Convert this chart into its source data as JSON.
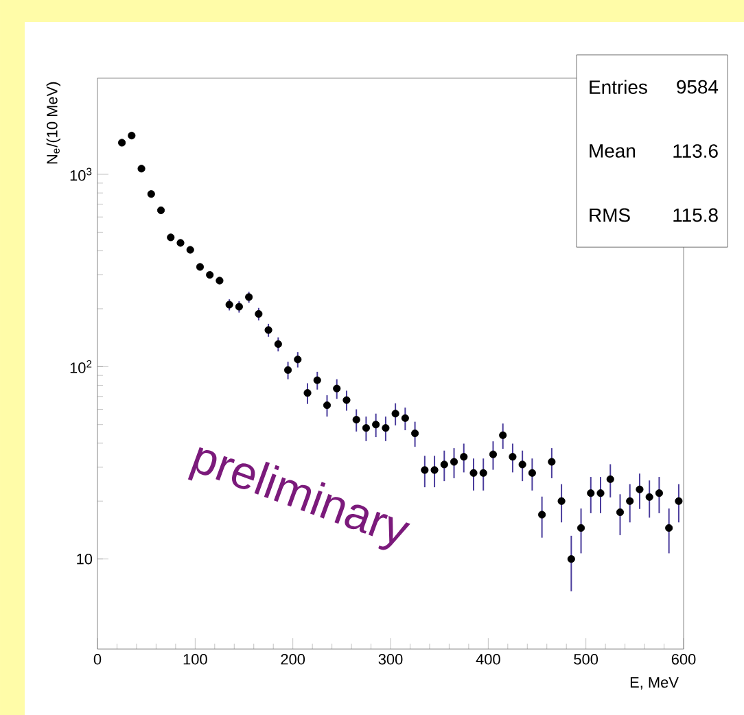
{
  "chart_data": {
    "type": "scatter",
    "xlabel": "E, MeV",
    "ylabel": "N$_{e}$/(10 MeV)",
    "x": [
      25,
      35,
      45,
      55,
      65,
      75,
      85,
      95,
      105,
      115,
      125,
      135,
      145,
      155,
      165,
      175,
      185,
      195,
      205,
      215,
      225,
      235,
      245,
      255,
      265,
      275,
      285,
      295,
      305,
      315,
      325,
      335,
      345,
      355,
      365,
      375,
      385,
      395,
      405,
      415,
      425,
      435,
      445,
      455,
      465,
      475,
      485,
      495,
      505,
      515,
      525,
      535,
      545,
      555,
      565,
      575,
      585,
      595
    ],
    "values": [
      1460,
      1590,
      1070,
      790,
      650,
      470,
      440,
      405,
      330,
      300,
      280,
      210,
      205,
      230,
      188,
      155,
      131,
      96,
      109,
      73,
      85,
      63,
      77,
      67,
      53,
      48,
      50,
      48,
      57,
      54,
      45,
      29,
      29,
      31,
      32,
      34,
      28,
      28,
      35,
      44,
      34,
      31,
      28,
      17,
      32,
      20,
      10,
      14.5,
      22,
      22,
      26,
      17.5,
      20,
      23,
      21,
      22,
      14.5,
      20
    ],
    "errors": [
      null,
      null,
      null,
      null,
      null,
      null,
      null,
      null,
      null,
      null,
      null,
      14,
      14,
      15,
      14,
      12,
      11,
      10,
      10,
      9,
      9,
      8,
      9,
      8,
      7,
      7,
      7,
      7,
      7.5,
      7.3,
      6.7,
      5.4,
      5.4,
      5.6,
      5.7,
      5.8,
      5.3,
      5.3,
      5.9,
      6.6,
      5.8,
      5.6,
      5.3,
      4.1,
      5.7,
      4.5,
      3.2,
      3.8,
      4.7,
      4.7,
      5.1,
      4.2,
      4.5,
      4.8,
      4.6,
      4.7,
      3.8,
      4.5
    ],
    "color": "#000000",
    "marker": "circle",
    "log": "y",
    "xlim": [
      0,
      600
    ],
    "xticks": [
      0,
      100,
      200,
      300,
      400,
      500,
      600
    ],
    "ylim": [
      3.4,
      3160
    ],
    "yticks": [
      {
        "value": 10,
        "label": "10"
      },
      {
        "value": 100,
        "label": "10$^{2}$"
      },
      {
        "value": 1000,
        "label": "10$^{3}$"
      }
    ],
    "annotations": [
      "Entries",
      "9584",
      "Mean",
      "113.6",
      "RMS",
      "115.8",
      "preliminary"
    ]
  }
}
